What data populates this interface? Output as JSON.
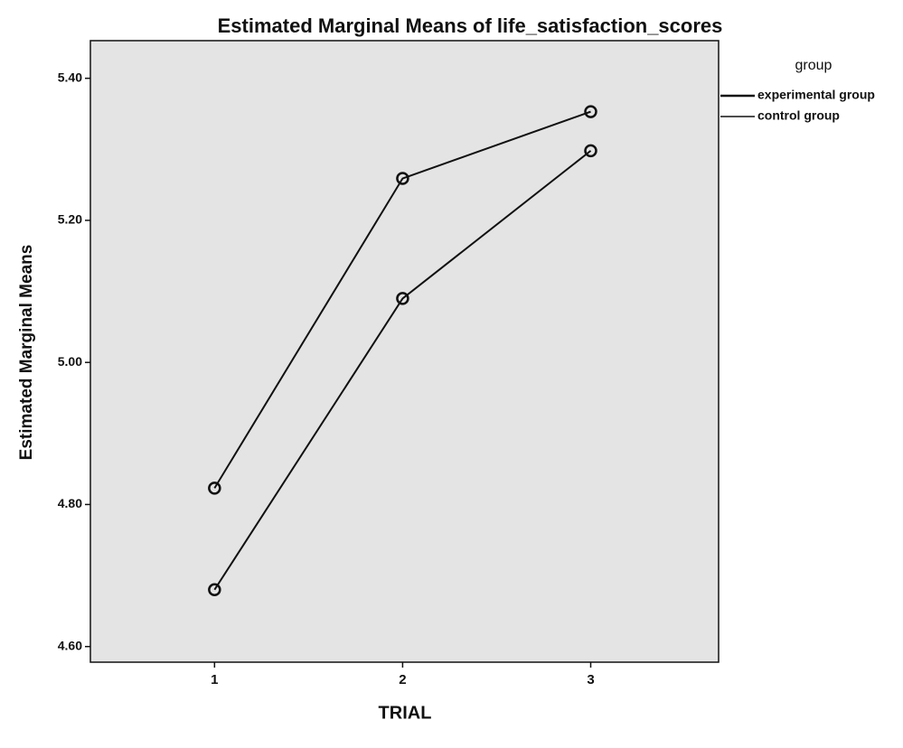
{
  "chart_data": {
    "type": "line",
    "title": "Estimated Marginal Means of life_satisfaction_scores",
    "x_label": "TRIAL",
    "y_label": "Estimated Marginal Means",
    "legend_title": "group",
    "x": [
      1,
      2,
      3
    ],
    "series": [
      {
        "name": "experimental group",
        "color": "#111111",
        "values": [
          4.823,
          5.259,
          5.353
        ]
      },
      {
        "name": "control group",
        "color": "#111111",
        "values": [
          4.68,
          5.09,
          5.298
        ]
      }
    ],
    "xlim": [
      0.34,
      3.68
    ],
    "xticks": [
      1,
      2,
      3
    ],
    "ylim": [
      4.578,
      5.453
    ],
    "yticks": [
      {
        "value": 4.6,
        "label": "4.60"
      },
      {
        "value": 4.8,
        "label": "4.80"
      },
      {
        "value": 5.0,
        "label": "5.00"
      },
      {
        "value": 5.2,
        "label": "5.20"
      },
      {
        "value": 5.4,
        "label": "5.40"
      }
    ],
    "grid": false,
    "legend": "right"
  }
}
